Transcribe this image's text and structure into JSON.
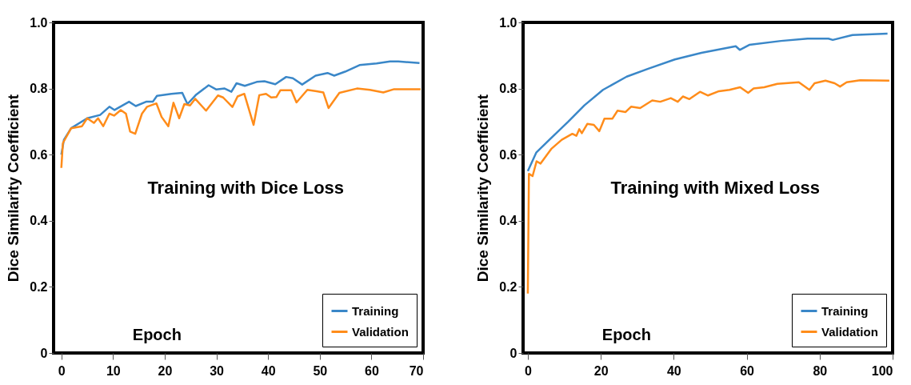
{
  "chart_data": [
    {
      "type": "line",
      "title": "Training with Dice Loss",
      "xlabel": "Epoch",
      "ylabel": "Dice Similarity Coefficient",
      "xlim": [
        -1.5,
        70
      ],
      "xticks": [
        0,
        10,
        20,
        30,
        40,
        50,
        60,
        70
      ],
      "ylim": [
        0,
        1
      ],
      "yticks": [
        0,
        0.2,
        0.4,
        0.6,
        0.8,
        {
          "value": 1,
          "label": "1.0"
        }
      ],
      "grid": false,
      "legend": "bottom right",
      "line_style": "solid",
      "series": [
        {
          "name": "Training",
          "color": "#3a87c8",
          "x": [
            0,
            0.5,
            1.9,
            5,
            7.5,
            9.3,
            10.3,
            13.1,
            14.4,
            16.4,
            17.7,
            18.5,
            21.3,
            23.4,
            24.4,
            26,
            28.5,
            30,
            31.6,
            32.9,
            33.9,
            35.5,
            37.8,
            39.3,
            41.4,
            43.5,
            44.8,
            46.6,
            49.2,
            51.5,
            52.8,
            54.9,
            57.7,
            61,
            63.6,
            65.2,
            69.3
          ],
          "values": [
            0.6,
            0.645,
            0.68,
            0.71,
            0.72,
            0.745,
            0.735,
            0.76,
            0.747,
            0.76,
            0.76,
            0.778,
            0.784,
            0.787,
            0.753,
            0.78,
            0.81,
            0.797,
            0.8,
            0.79,
            0.816,
            0.808,
            0.82,
            0.822,
            0.813,
            0.835,
            0.831,
            0.812,
            0.839,
            0.847,
            0.839,
            0.851,
            0.871,
            0.876,
            0.882,
            0.882,
            0.877
          ]
        },
        {
          "name": "Validation",
          "color": "#ff8c1a",
          "x": [
            0,
            0.3,
            1.9,
            4,
            5,
            6.3,
            7.1,
            8.1,
            9.3,
            10.2,
            11.5,
            12.5,
            13.3,
            14.3,
            15.6,
            16.6,
            18.4,
            19.4,
            20.7,
            21.7,
            22.8,
            23.8,
            24.9,
            25.9,
            28,
            30.3,
            31.3,
            33.1,
            34.1,
            35.4,
            37.2,
            38.3,
            39.6,
            40.6,
            41.6,
            42.4,
            44.5,
            45.5,
            47.6,
            49.4,
            50.7,
            51.7,
            53.8,
            57.2,
            59.7,
            62.3,
            64.4,
            69.5
          ],
          "values": [
            0.56,
            0.635,
            0.68,
            0.686,
            0.71,
            0.696,
            0.71,
            0.686,
            0.724,
            0.718,
            0.735,
            0.724,
            0.67,
            0.663,
            0.724,
            0.745,
            0.755,
            0.714,
            0.686,
            0.757,
            0.71,
            0.753,
            0.749,
            0.769,
            0.733,
            0.779,
            0.773,
            0.744,
            0.776,
            0.784,
            0.69,
            0.78,
            0.784,
            0.773,
            0.774,
            0.795,
            0.795,
            0.758,
            0.796,
            0.792,
            0.788,
            0.741,
            0.787,
            0.8,
            0.796,
            0.788,
            0.798,
            0.798
          ]
        }
      ]
    },
    {
      "type": "line",
      "title": "Training with Mixed Loss",
      "xlabel": "Epoch",
      "ylabel": "Dice Similarity Coefficient",
      "xlim": [
        -1.3,
        100
      ],
      "xticks": [
        0,
        20,
        40,
        60,
        80,
        100
      ],
      "ylim": [
        0,
        1
      ],
      "yticks": [
        0,
        0.2,
        0.4,
        0.6,
        0.8,
        {
          "value": 1,
          "label": "1.0"
        }
      ],
      "grid": false,
      "legend": "bottom right",
      "line_style": "solid",
      "series": [
        {
          "name": "Training",
          "color": "#3a87c8",
          "x": [
            0,
            2.3,
            5.9,
            11.1,
            15.5,
            20.6,
            27.1,
            33,
            40.3,
            47.6,
            57,
            58.1,
            60.7,
            69.4,
            76.7,
            82.4,
            83.6,
            89,
            98.6
          ],
          "values": [
            0.55,
            0.606,
            0.645,
            0.7,
            0.749,
            0.796,
            0.836,
            0.86,
            0.888,
            0.908,
            0.928,
            0.917,
            0.932,
            0.944,
            0.951,
            0.951,
            0.947,
            0.962,
            0.966
          ]
        },
        {
          "name": "Validation",
          "color": "#ff8c1a",
          "x": [
            0,
            0.3,
            1.3,
            2.4,
            3.5,
            6.4,
            9.3,
            12.2,
            13.3,
            14.1,
            14.8,
            16.3,
            18.1,
            19.6,
            21,
            23.2,
            24.6,
            26.8,
            28.3,
            30.8,
            34.1,
            36.3,
            39.2,
            41.1,
            42.5,
            44.3,
            47.2,
            49.4,
            52.4,
            55.3,
            58.2,
            60.4,
            61.9,
            64.8,
            68.4,
            74.3,
            77.2,
            78.6,
            81.6,
            84.1,
            85.6,
            87.4,
            91.1,
            99.1
          ],
          "values": [
            0.18,
            0.542,
            0.535,
            0.58,
            0.573,
            0.617,
            0.645,
            0.663,
            0.657,
            0.677,
            0.665,
            0.693,
            0.69,
            0.671,
            0.709,
            0.709,
            0.733,
            0.729,
            0.745,
            0.741,
            0.764,
            0.76,
            0.771,
            0.76,
            0.776,
            0.768,
            0.79,
            0.779,
            0.792,
            0.796,
            0.804,
            0.787,
            0.8,
            0.804,
            0.814,
            0.819,
            0.796,
            0.816,
            0.824,
            0.816,
            0.806,
            0.819,
            0.825,
            0.824
          ]
        }
      ]
    }
  ]
}
